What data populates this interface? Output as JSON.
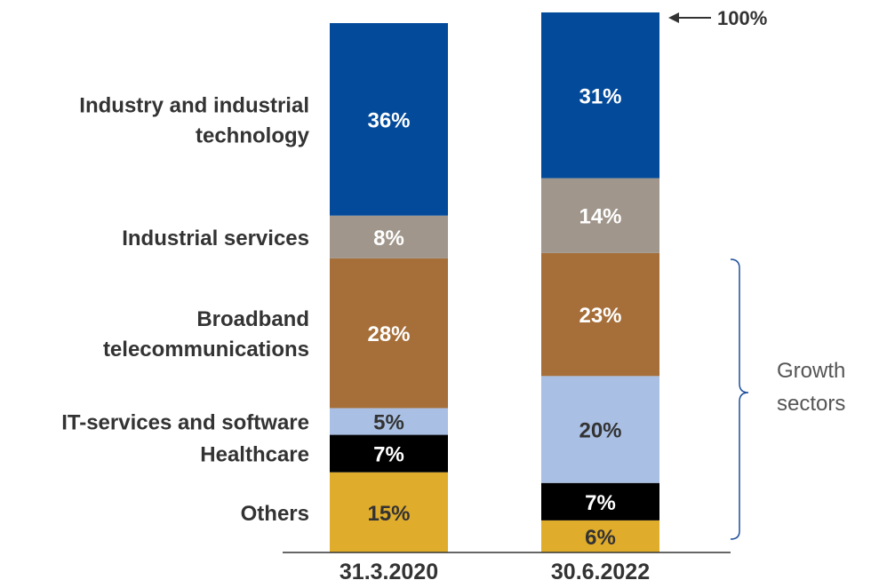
{
  "chart_data": {
    "type": "stacked-bar",
    "categories": [
      "31.3.2020",
      "30.6.2022"
    ],
    "series": [
      {
        "name": "Others",
        "values": [
          15,
          6
        ],
        "labels": [
          "15%",
          "6%"
        ],
        "color": "#E0AC2B",
        "label_color": "#333333"
      },
      {
        "name": "Healthcare",
        "values": [
          7,
          7
        ],
        "labels": [
          "7%",
          "7%"
        ],
        "color": "#000000",
        "label_color": "#ffffff"
      },
      {
        "name": "IT-services and software",
        "values": [
          5,
          20
        ],
        "labels": [
          "5%",
          "20%"
        ],
        "color": "#A9BFE3",
        "label_color": "#333333"
      },
      {
        "name": "Broadband telecommunications",
        "display_lines": [
          "Broadband",
          "telecommunications"
        ],
        "values": [
          28,
          23
        ],
        "labels": [
          "28%",
          "23%"
        ],
        "color": "#A66E38",
        "label_color": "#ffffff"
      },
      {
        "name": "Industrial services",
        "values": [
          8,
          14
        ],
        "labels": [
          "8%",
          "14%"
        ],
        "color": "#A0968B",
        "label_color": "#ffffff"
      },
      {
        "name": "Industry and industrial technology",
        "display_lines": [
          "Industry and industrial",
          "technology"
        ],
        "values": [
          36,
          31
        ],
        "labels": [
          "36%",
          "31%"
        ],
        "color": "#034A9A",
        "label_color": "#ffffff"
      }
    ],
    "ylim": [
      0,
      100
    ],
    "total_annotation": "100%",
    "bracket": {
      "label_lines": [
        "Growth",
        "sectors"
      ]
    }
  }
}
